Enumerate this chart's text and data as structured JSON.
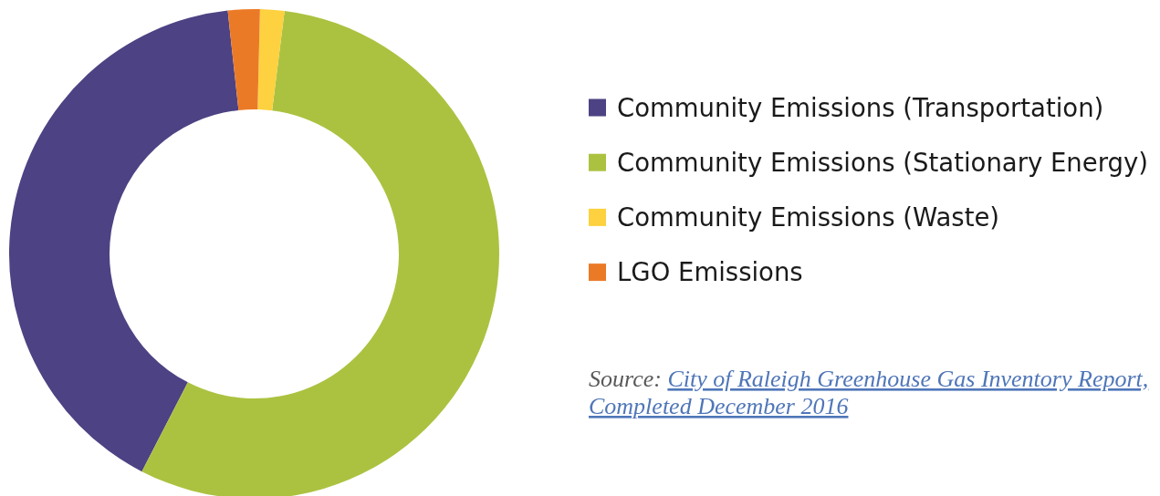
{
  "chart_data": {
    "type": "donut",
    "categories": [
      "Community Emissions (Transportation)",
      "Community Emissions (Stationary Energy)",
      "Community Emissions (Waste)",
      "LGO Emissions"
    ],
    "values": [
      40.7,
      55.6,
      1.6,
      2.1
    ],
    "colors": [
      "#4d4283",
      "#abc240",
      "#fdd13f",
      "#eb7a27"
    ],
    "legend": "right",
    "annotations": [
      "Source: City of Raleigh Greenhouse Gas Inventory Report, Completed December 2016"
    ]
  }
}
